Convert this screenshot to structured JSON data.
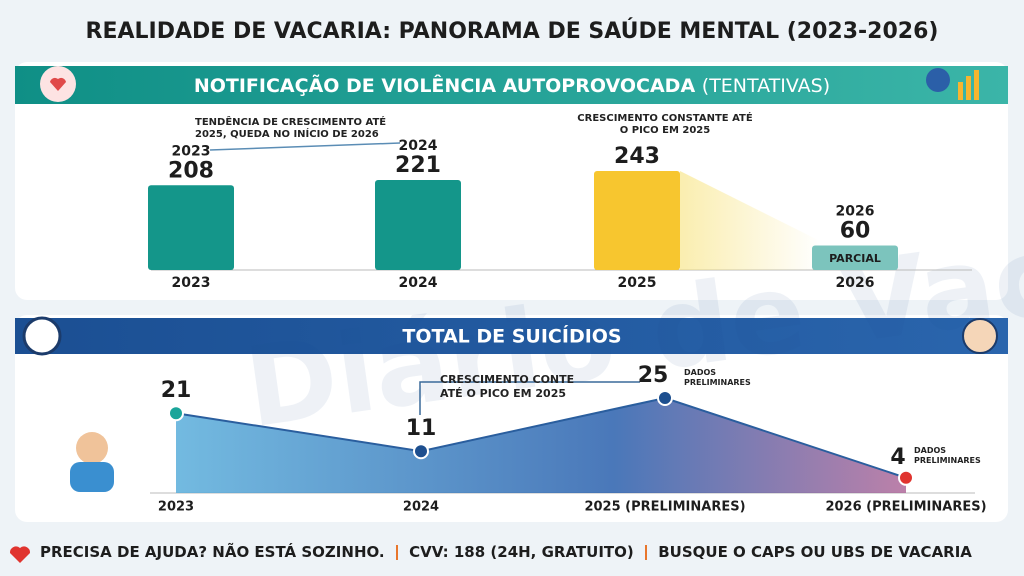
{
  "title": "REALIDADE DE VACARIA: PANORAMA DE SAÚDE MENTAL (2023-2026)",
  "watermark": "Diário de Vacaria.com.br",
  "chart_data": [
    {
      "type": "bar",
      "title": "NOTIFICAÇÃO DE VIOLÊNCIA AUTOPROVOCADA",
      "subtitle": "(TENTATIVAS)",
      "categories": [
        "2023",
        "2024",
        "2025",
        "2026"
      ],
      "values": [
        208,
        221,
        243,
        60
      ],
      "colors": [
        "#14968a",
        "#14968a",
        "#f7c62f",
        "#7cc4bd"
      ],
      "annotations": [
        "TENDÊNCIA DE CRESCIMENTO ATÉ 2025, QUEDA NO INÍCIO DE 2026",
        "CRESCIMENTO CONSTANTE ATÉ O PICO EM 2025",
        "PARCIAL"
      ]
    },
    {
      "type": "area",
      "title": "TOTAL DE SUICÍDIOS",
      "categories": [
        "2023",
        "2024",
        "2025 (PRELIMINARES)",
        "2026 (PRELIMINARES)"
      ],
      "values": [
        21,
        11,
        25,
        4
      ],
      "point_colors": [
        "#1aa59a",
        "#1d4f8f",
        "#1d4f8f",
        "#e0342f"
      ],
      "annotations": [
        "CRESCIMENTO CONTE ATÉ O PICO EM 2025",
        "DADOS PRELIMINARES",
        "DADOS PRELIMINARES"
      ]
    }
  ],
  "footer": [
    "PRECISA DE AJUDA? NÃO ESTÁ SOZINHO.",
    "CVV: 188 (24H, GRATUITO)",
    "BUSQUE O CAPS OU UBS DE VACARIA"
  ]
}
